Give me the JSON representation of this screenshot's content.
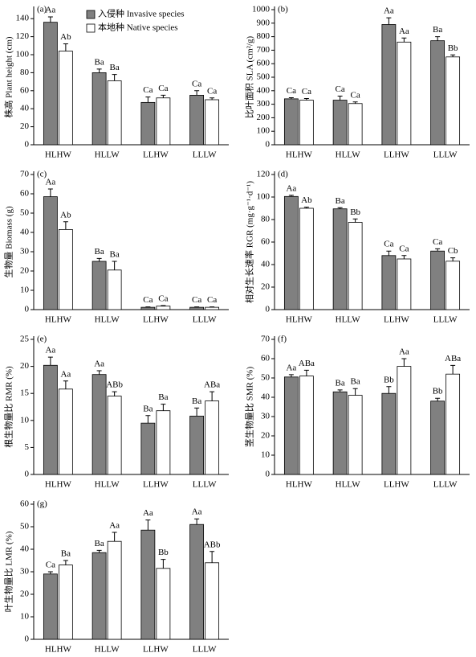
{
  "chart_data": [
    {
      "type": "bar",
      "panel": "(a)",
      "ylabel": "株高 Plant height (cm)",
      "categories": [
        "HLHW",
        "HLLW",
        "LLHW",
        "LLLW"
      ],
      "ylim": [
        0,
        150
      ],
      "yticks": [
        0,
        20,
        40,
        60,
        80,
        100,
        120,
        140
      ],
      "series": [
        {
          "name": "入侵种 Invasive species",
          "color": "#808080",
          "values": [
            136,
            80,
            47,
            55
          ],
          "errors": [
            6,
            4,
            6,
            5
          ],
          "labels": [
            "Aa",
            "Ba",
            "Ca",
            "Ca"
          ]
        },
        {
          "name": "本地种 Native species",
          "color": "#ffffff",
          "values": [
            104,
            71,
            52,
            50
          ],
          "errors": [
            8,
            7,
            3,
            2
          ],
          "labels": [
            "Ab",
            "Ba",
            "Ca",
            "Ca"
          ]
        }
      ]
    },
    {
      "type": "bar",
      "panel": "(b)",
      "ylabel": "比叶面积 SLA (cm²/g)",
      "categories": [
        "HLHW",
        "HLLW",
        "LLHW",
        "LLLW"
      ],
      "ylim": [
        0,
        1000
      ],
      "yticks": [
        0,
        100,
        200,
        300,
        400,
        500,
        600,
        700,
        800,
        900,
        1000
      ],
      "series": [
        {
          "color": "#808080",
          "values": [
            340,
            330,
            890,
            770
          ],
          "errors": [
            8,
            30,
            50,
            30
          ],
          "labels": [
            "Ca",
            "Ca",
            "Aa",
            "Ba"
          ]
        },
        {
          "color": "#ffffff",
          "values": [
            330,
            305,
            760,
            650
          ],
          "errors": [
            12,
            12,
            30,
            15
          ],
          "labels": [
            "Ca",
            "Ca",
            "Aa",
            "Bb"
          ]
        }
      ]
    },
    {
      "type": "bar",
      "panel": "(c)",
      "ylabel": "生物量 Biomass (g)",
      "categories": [
        "HLHW",
        "HLLW",
        "LLHW",
        "LLLW"
      ],
      "ylim": [
        0,
        70
      ],
      "yticks": [
        0,
        10,
        20,
        30,
        40,
        50,
        60,
        70
      ],
      "series": [
        {
          "color": "#808080",
          "values": [
            58.5,
            25,
            1.2,
            1.2
          ],
          "errors": [
            4,
            1.5,
            0.2,
            0.2
          ],
          "labels": [
            "Aa",
            "Ba",
            "Ca",
            "Ca"
          ]
        },
        {
          "color": "#ffffff",
          "values": [
            41.5,
            20.5,
            1.8,
            1.2
          ],
          "errors": [
            4,
            4.5,
            0.3,
            0.2
          ],
          "labels": [
            "Ab",
            "Ba",
            "Ca",
            "Ca"
          ]
        }
      ]
    },
    {
      "type": "bar",
      "panel": "(d)",
      "ylabel": "相对生长速率 RGR (mg·g⁻¹·d⁻¹)",
      "categories": [
        "HLHW",
        "HLLW",
        "LLHW",
        "LLLW"
      ],
      "ylim": [
        0,
        120
      ],
      "yticks": [
        0,
        20,
        40,
        60,
        80,
        100,
        120
      ],
      "series": [
        {
          "color": "#808080",
          "values": [
            100.5,
            89.5,
            48,
            52
          ],
          "errors": [
            1,
            1,
            4,
            2
          ],
          "labels": [
            "Aa",
            "Ba",
            "Ca",
            "Ca"
          ]
        },
        {
          "color": "#ffffff",
          "values": [
            90,
            77.5,
            45,
            43
          ],
          "errors": [
            1,
            3,
            3,
            3
          ],
          "labels": [
            "Ab",
            "Bb",
            "Ca",
            "Cb"
          ]
        }
      ]
    },
    {
      "type": "bar",
      "panel": "(e)",
      "ylabel": "根生物量比 RMR (%)",
      "categories": [
        "HLHW",
        "HLLW",
        "LLHW",
        "LLLW"
      ],
      "ylim": [
        0,
        25
      ],
      "yticks": [
        0,
        5,
        10,
        15,
        20,
        25
      ],
      "series": [
        {
          "color": "#808080",
          "values": [
            20.2,
            18.5,
            9.5,
            10.8
          ],
          "errors": [
            1.5,
            0.7,
            1.4,
            1.5
          ],
          "labels": [
            "Aa",
            "Aa",
            "Ba",
            "Ba"
          ]
        },
        {
          "color": "#ffffff",
          "values": [
            15.8,
            14.5,
            11.8,
            13.6
          ],
          "errors": [
            1.5,
            0.8,
            1.2,
            1.7
          ],
          "labels": [
            "Aa",
            "ABb",
            "Ba",
            "ABa"
          ]
        }
      ]
    },
    {
      "type": "bar",
      "panel": "(f)",
      "ylabel": "茎生物量比 SMR (%)",
      "categories": [
        "HLHW",
        "HLLW",
        "LLHW",
        "LLLW"
      ],
      "ylim": [
        0,
        70
      ],
      "yticks": [
        0,
        10,
        20,
        30,
        40,
        50,
        60,
        70
      ],
      "series": [
        {
          "color": "#808080",
          "values": [
            50.5,
            42.8,
            42,
            38
          ],
          "errors": [
            1.2,
            1,
            3.5,
            1.5
          ],
          "labels": [
            "Aa",
            "Ba",
            "Bb",
            "Bb"
          ]
        },
        {
          "color": "#ffffff",
          "values": [
            51,
            41,
            56,
            52
          ],
          "errors": [
            3,
            3.5,
            4,
            4.5
          ],
          "labels": [
            "ABa",
            "Ba",
            "Aa",
            "ABa"
          ]
        }
      ]
    },
    {
      "type": "bar",
      "panel": "(g)",
      "ylabel": "叶生物量比 LMR (%)",
      "categories": [
        "HLHW",
        "HLLW",
        "LLHW",
        "LLLW"
      ],
      "ylim": [
        0,
        60
      ],
      "yticks": [
        0,
        10,
        20,
        30,
        40,
        50,
        60
      ],
      "series": [
        {
          "color": "#808080",
          "values": [
            29,
            38.5,
            48.5,
            51
          ],
          "errors": [
            1,
            1,
            4.5,
            2.5
          ],
          "labels": [
            "Ca",
            "Ba",
            "Aa",
            "Aa"
          ]
        },
        {
          "color": "#ffffff",
          "values": [
            33,
            43.5,
            31.5,
            34
          ],
          "errors": [
            2,
            4,
            4,
            5
          ],
          "labels": [
            "Ba",
            "Aa",
            "Bb",
            "ABb"
          ]
        }
      ]
    }
  ]
}
